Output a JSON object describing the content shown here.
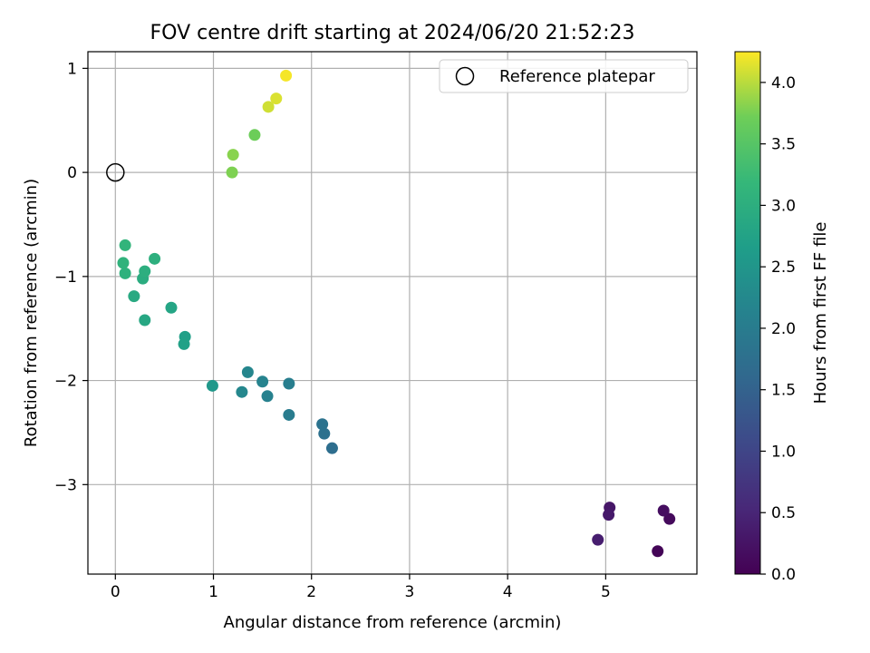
{
  "chart_data": {
    "type": "scatter",
    "title": "FOV centre drift starting at 2024/06/20 21:52:23",
    "xlabel": "Angular distance from reference (arcmin)",
    "ylabel": "Rotation from reference (arcmin)",
    "xlim": [
      -0.28,
      5.93
    ],
    "ylim": [
      -3.86,
      1.16
    ],
    "xticks": [
      "0",
      "1",
      "2",
      "3",
      "4",
      "5"
    ],
    "yticks": [
      "−3",
      "−2",
      "−1",
      "0",
      "1"
    ],
    "grid": true,
    "legend": {
      "placement": "top-right",
      "entries": [
        "Reference platepar"
      ]
    },
    "reference": {
      "x": 0,
      "y": 0
    },
    "colorbar": {
      "label": "Hours from first FF file",
      "colormap": "viridis",
      "range": [
        0.0,
        4.25
      ],
      "ticks": [
        "0.0",
        "0.5",
        "1.0",
        "1.5",
        "2.0",
        "2.5",
        "3.0",
        "3.5",
        "4.0"
      ]
    },
    "points": [
      {
        "x": 5.53,
        "y": -3.64,
        "t": 0.05
      },
      {
        "x": 5.65,
        "y": -3.33,
        "t": 0.12
      },
      {
        "x": 5.59,
        "y": -3.25,
        "t": 0.18
      },
      {
        "x": 5.04,
        "y": -3.22,
        "t": 0.28
      },
      {
        "x": 5.03,
        "y": -3.29,
        "t": 0.33
      },
      {
        "x": 4.92,
        "y": -3.53,
        "t": 0.4
      },
      {
        "x": 2.21,
        "y": -2.65,
        "t": 1.72
      },
      {
        "x": 2.13,
        "y": -2.51,
        "t": 1.78
      },
      {
        "x": 2.11,
        "y": -2.42,
        "t": 1.82
      },
      {
        "x": 1.77,
        "y": -2.33,
        "t": 2.0
      },
      {
        "x": 1.77,
        "y": -2.03,
        "t": 2.04
      },
      {
        "x": 1.55,
        "y": -2.15,
        "t": 2.1
      },
      {
        "x": 1.5,
        "y": -2.01,
        "t": 2.15
      },
      {
        "x": 1.35,
        "y": -1.92,
        "t": 2.2
      },
      {
        "x": 1.29,
        "y": -2.11,
        "t": 2.22
      },
      {
        "x": 0.99,
        "y": -2.05,
        "t": 2.55
      },
      {
        "x": 0.71,
        "y": -1.58,
        "t": 2.7
      },
      {
        "x": 0.7,
        "y": -1.65,
        "t": 2.72
      },
      {
        "x": 0.57,
        "y": -1.3,
        "t": 2.8
      },
      {
        "x": 0.3,
        "y": -1.42,
        "t": 2.85
      },
      {
        "x": 0.19,
        "y": -1.19,
        "t": 2.9
      },
      {
        "x": 0.28,
        "y": -1.02,
        "t": 2.95
      },
      {
        "x": 0.3,
        "y": -0.95,
        "t": 3.0
      },
      {
        "x": 0.4,
        "y": -0.83,
        "t": 3.02
      },
      {
        "x": 0.1,
        "y": -0.97,
        "t": 3.05
      },
      {
        "x": 0.08,
        "y": -0.87,
        "t": 3.08
      },
      {
        "x": 0.1,
        "y": -0.7,
        "t": 3.12
      },
      {
        "x": 1.19,
        "y": 0.0,
        "t": 3.78
      },
      {
        "x": 1.2,
        "y": 0.17,
        "t": 3.82
      },
      {
        "x": 1.42,
        "y": 0.36,
        "t": 3.7
      },
      {
        "x": 1.56,
        "y": 0.63,
        "t": 4.08
      },
      {
        "x": 1.64,
        "y": 0.71,
        "t": 4.12
      },
      {
        "x": 1.74,
        "y": 0.93,
        "t": 4.22
      }
    ]
  }
}
